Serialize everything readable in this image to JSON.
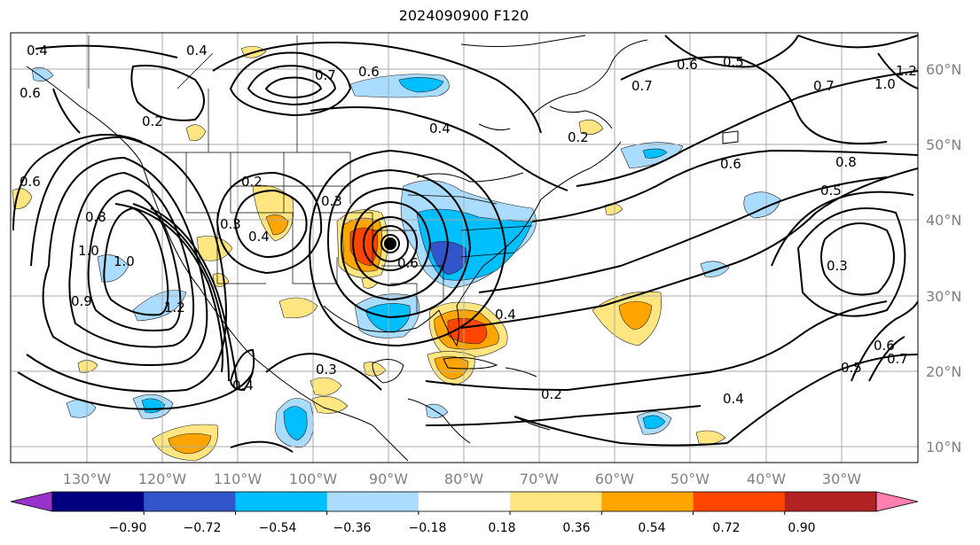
{
  "title": "2024090900 F120",
  "longitude_labels": [
    "130°W",
    "120°W",
    "110°W",
    "100°W",
    "90°W",
    "80°W",
    "70°W",
    "60°W",
    "50°W",
    "40°W",
    "30°W"
  ],
  "latitude_labels": [
    "60°N",
    "50°N",
    "40°N",
    "30°N",
    "20°N",
    "10°N"
  ],
  "contour_labels": [
    "0.4",
    "0.4",
    "0.6",
    "0.7",
    "0.6",
    "0.5",
    "1.2",
    "1.0",
    "0.6",
    "0.7",
    "0.7",
    "0.2",
    "0.4",
    "0.2",
    "0.6",
    "0.8",
    "0.5",
    "0.2",
    "0.3",
    "0.4",
    "1.0",
    "0.8",
    "1.0",
    "1.2",
    "0.9",
    "0.6",
    "0.3",
    "0.4",
    "0.3",
    "0.4",
    "0.2",
    "0.5",
    "0.6",
    "0.7",
    "0.4",
    "0.6",
    "0.3"
  ],
  "colorbar": {
    "ticks": [
      "−0.90",
      "−0.72",
      "−0.54",
      "−0.36",
      "−0.18",
      "0.18",
      "0.36",
      "0.54",
      "0.72",
      "0.90"
    ],
    "colors": [
      "#9933cc",
      "#000080",
      "#3355cc",
      "#00bfff",
      "#aadcff",
      "#ffffff",
      "#ffe680",
      "#ffa500",
      "#ff4500",
      "#b22222",
      "#ff80b0"
    ]
  },
  "colors": {
    "pos1": "#ffe680",
    "pos2": "#ffa500",
    "pos3": "#ff4500",
    "neg1": "#aadcff",
    "neg2": "#00bfff",
    "neg3": "#3355cc",
    "grid": "#aaaaaa",
    "label": "#808080"
  }
}
